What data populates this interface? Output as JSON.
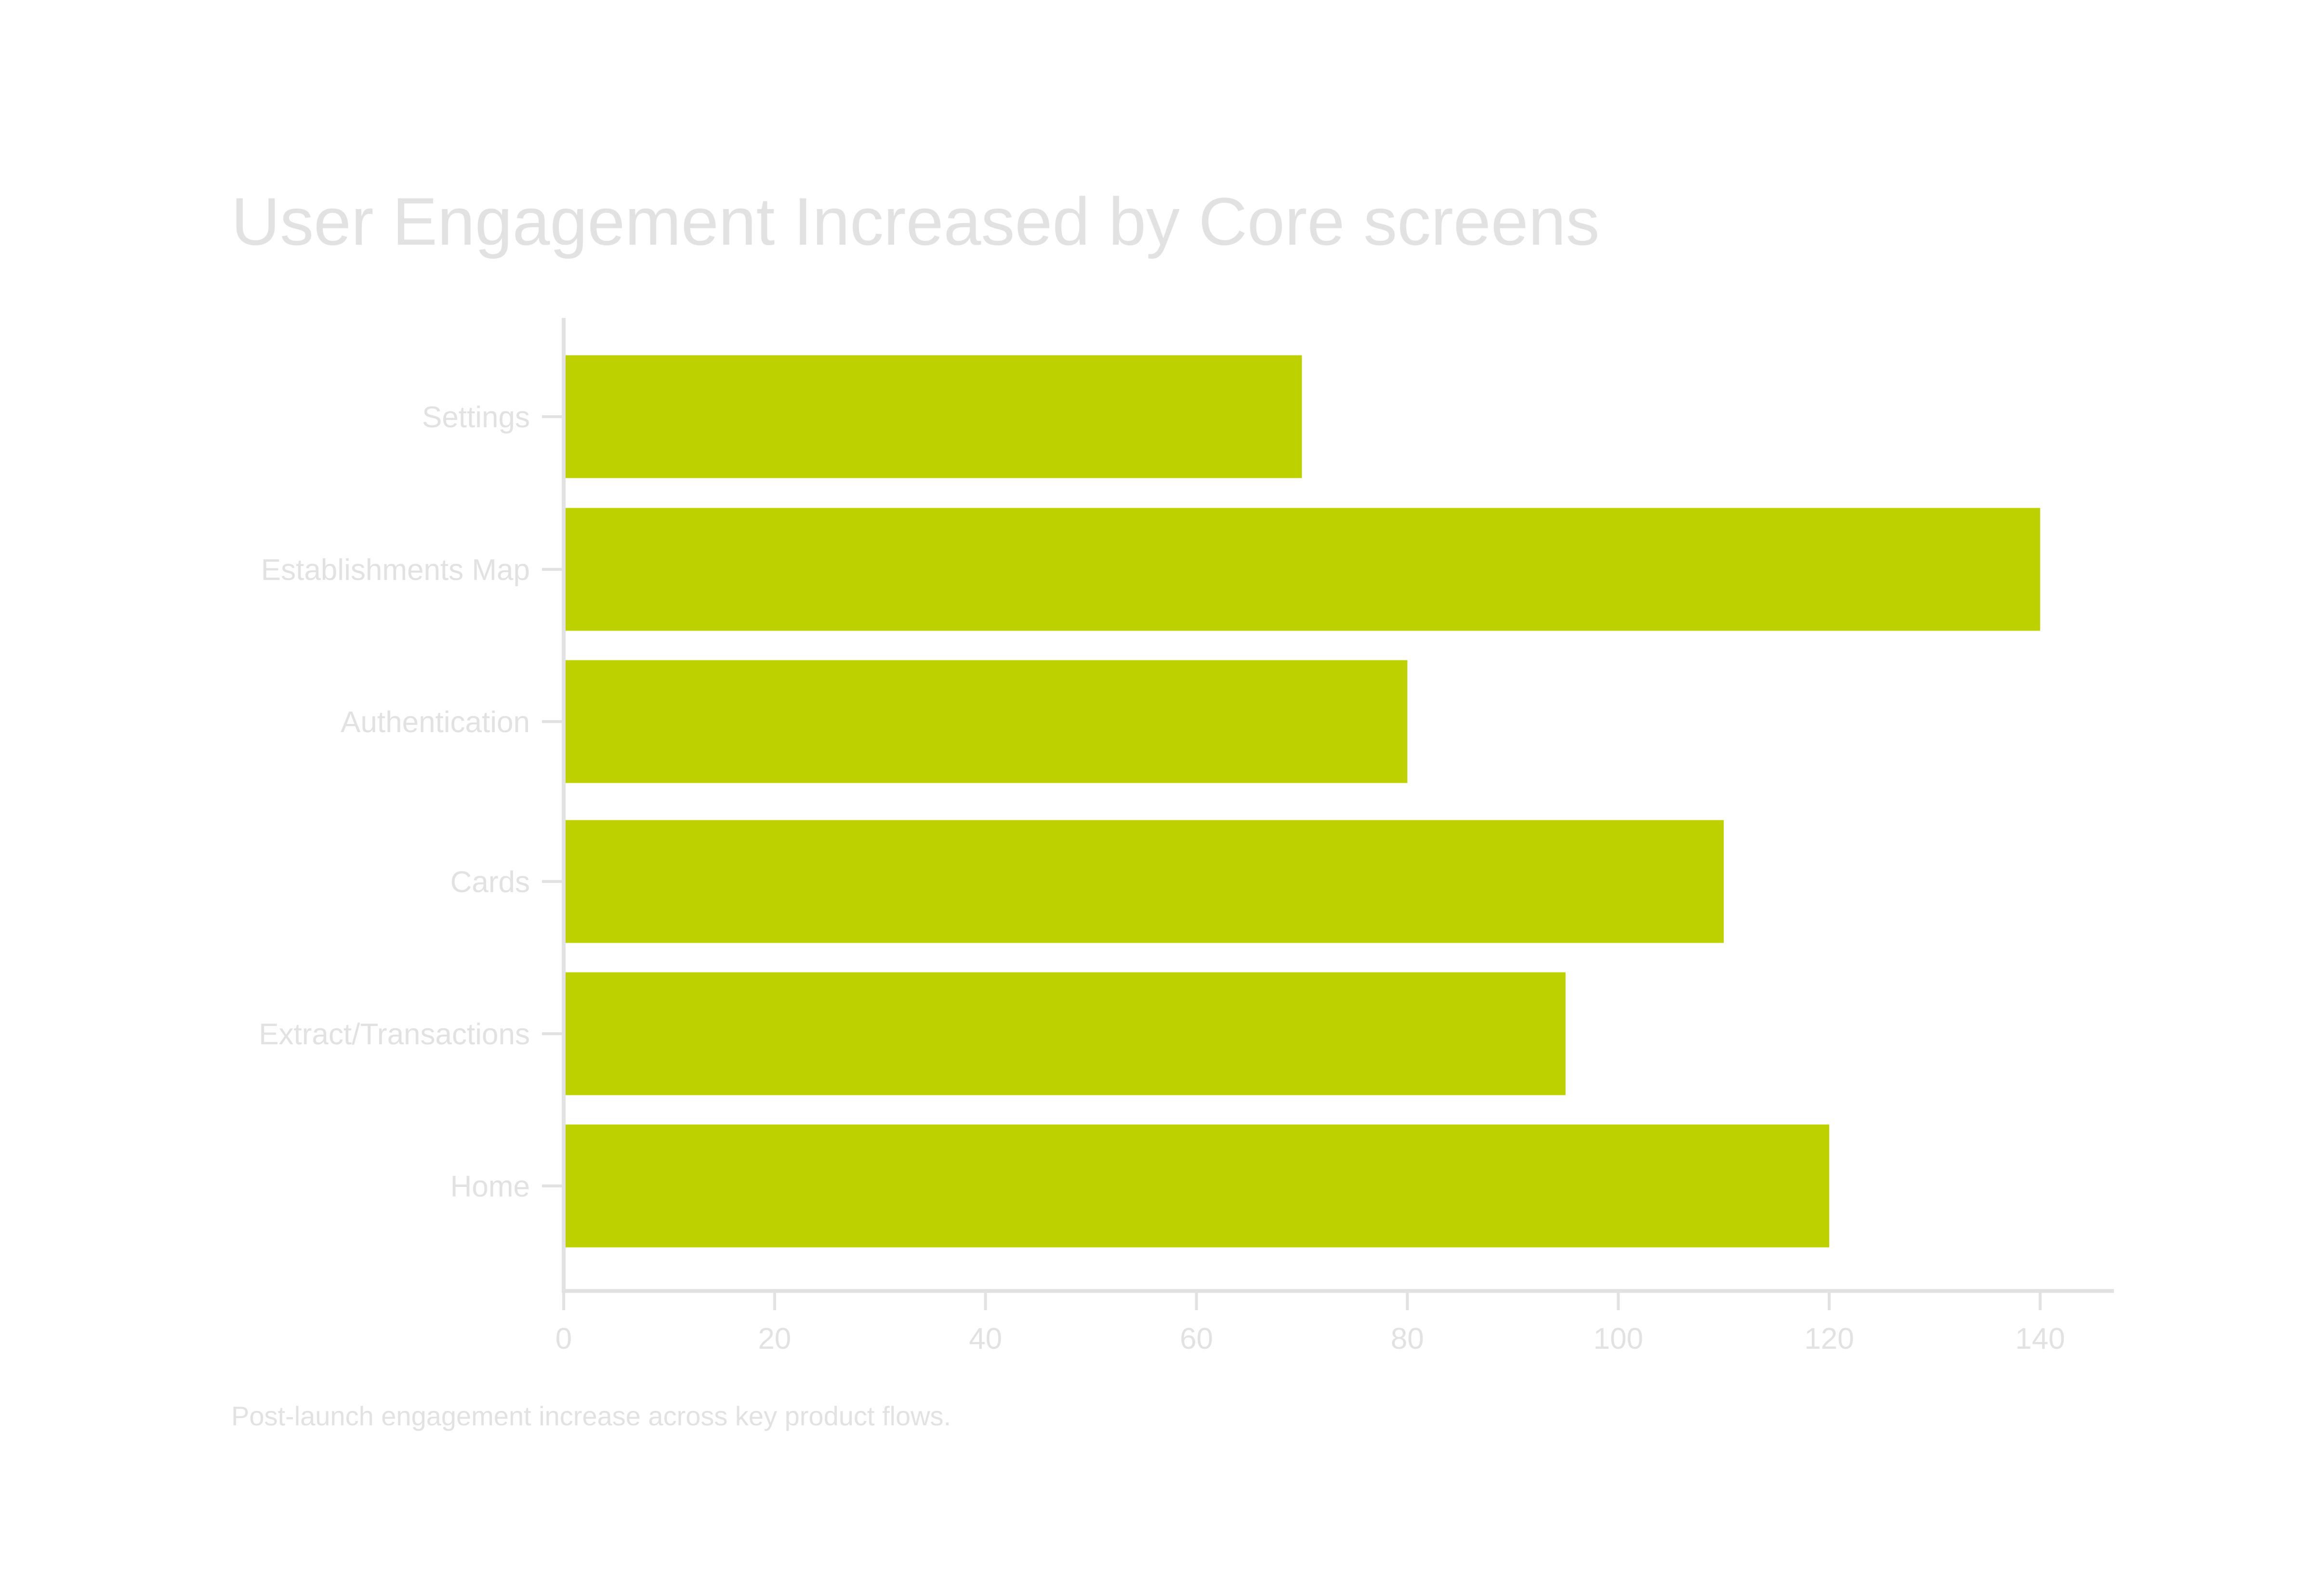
{
  "colors": {
    "bar": "#bdd100",
    "axis": "#e2e2e2",
    "text": "#e2e2e2",
    "background": "#ffffff"
  },
  "chart_data": {
    "type": "bar",
    "orientation": "horizontal",
    "title": "User Engagement Increased by Core screens",
    "caption": "Post-launch engagement increase across key product flows.",
    "xlabel": "",
    "ylabel": "",
    "categories": [
      "Settings",
      "Establishments Map",
      "Authentication",
      "Cards",
      "Extract/Transactions",
      "Home"
    ],
    "values": [
      70,
      140,
      80,
      110,
      95,
      120
    ],
    "xlim": [
      0,
      147
    ],
    "xticks": [
      0,
      20,
      40,
      60,
      80,
      100,
      120,
      140
    ],
    "grid": false,
    "legend": "none"
  }
}
